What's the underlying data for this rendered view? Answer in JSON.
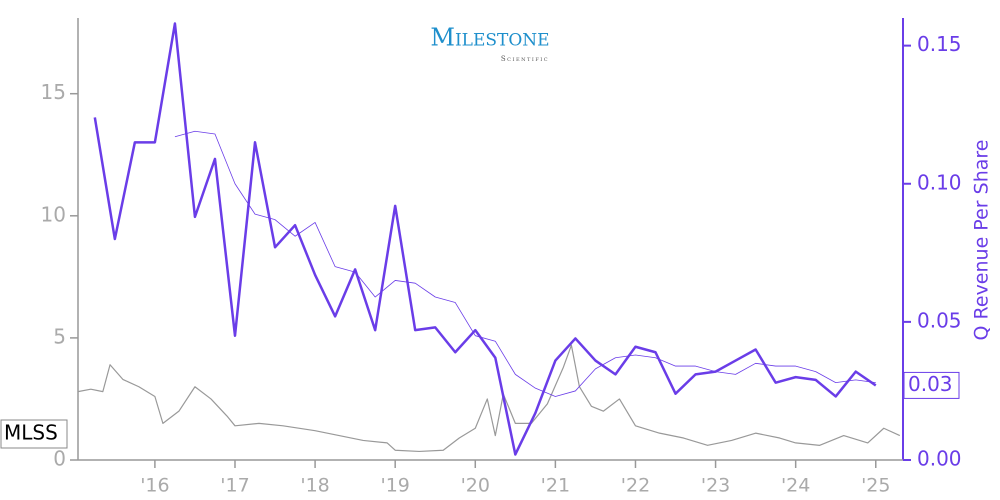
{
  "chart_data": {
    "type": "line",
    "logo": {
      "name": "Milestone",
      "sub": "Scientific",
      "color": "#1e8fcc"
    },
    "y2label": "Q Revenue Per Share",
    "xlim": [
      2015.04,
      2025.34
    ],
    "xticks": [
      {
        "value": 2016,
        "label": "'16"
      },
      {
        "value": 2017,
        "label": "'17"
      },
      {
        "value": 2018,
        "label": "'18"
      },
      {
        "value": 2019,
        "label": "'19"
      },
      {
        "value": 2020,
        "label": "'20"
      },
      {
        "value": 2021,
        "label": "'21"
      },
      {
        "value": 2022,
        "label": "'22"
      },
      {
        "value": 2023,
        "label": "'23"
      },
      {
        "value": 2024,
        "label": "'24"
      },
      {
        "value": 2025,
        "label": "'25"
      }
    ],
    "ylim": [
      0,
      18.1
    ],
    "yticks": [
      0,
      5,
      10,
      15
    ],
    "y2lim": [
      0,
      0.16
    ],
    "y2ticks": [
      {
        "value": 0,
        "label": "0.00"
      },
      {
        "value": 0.05,
        "label": "0.05"
      },
      {
        "value": 0.1,
        "label": "0.10"
      },
      {
        "value": 0.15,
        "label": "0.15"
      }
    ],
    "series": [
      {
        "name": "MLSS",
        "color": "#999999",
        "x": [
          2015.04,
          2015.2,
          2015.35,
          2015.44,
          2015.6,
          2015.8,
          2016.0,
          2016.1,
          2016.3,
          2016.5,
          2016.7,
          2016.9,
          2017.0,
          2017.3,
          2017.6,
          2018.0,
          2018.3,
          2018.6,
          2018.9,
          2019.0,
          2019.3,
          2019.6,
          2019.8,
          2020.0,
          2020.15,
          2020.25,
          2020.35,
          2020.5,
          2020.7,
          2020.9,
          2021.1,
          2021.2,
          2021.3,
          2021.45,
          2021.6,
          2021.8,
          2022.0,
          2022.3,
          2022.6,
          2022.9,
          2023.2,
          2023.5,
          2023.8,
          2024.0,
          2024.3,
          2024.6,
          2024.9,
          2025.1,
          2025.3
        ],
        "values": [
          2.8,
          2.9,
          2.8,
          3.9,
          3.3,
          3.0,
          2.6,
          1.5,
          2.0,
          3.0,
          2.5,
          1.8,
          1.4,
          1.5,
          1.4,
          1.2,
          1.0,
          0.8,
          0.7,
          0.4,
          0.35,
          0.4,
          0.9,
          1.3,
          2.5,
          1.0,
          2.7,
          1.5,
          1.5,
          2.3,
          3.8,
          4.7,
          3.0,
          2.2,
          2.0,
          2.5,
          1.4,
          1.1,
          0.9,
          0.6,
          0.8,
          1.1,
          0.9,
          0.7,
          0.6,
          1.0,
          0.7,
          1.3,
          1.0
        ]
      },
      {
        "axis": "y2",
        "color": "#6a3de8",
        "width": 2.5,
        "last_label": "0.03",
        "x": [
          2015.25,
          2015.5,
          2015.75,
          2016.0,
          2016.25,
          2016.5,
          2016.75,
          2017.0,
          2017.25,
          2017.5,
          2017.75,
          2018.0,
          2018.25,
          2018.5,
          2018.75,
          2019.0,
          2019.25,
          2019.5,
          2019.75,
          2020.0,
          2020.25,
          2020.5,
          2020.75,
          2021.0,
          2021.25,
          2021.5,
          2021.75,
          2022.0,
          2022.25,
          2022.5,
          2022.75,
          2023.0,
          2023.25,
          2023.5,
          2023.75,
          2024.0,
          2024.25,
          2024.5,
          2024.75,
          2025.0
        ],
        "values": [
          0.124,
          0.08,
          0.115,
          0.115,
          0.158,
          0.088,
          0.109,
          0.045,
          0.115,
          0.077,
          0.085,
          0.067,
          0.052,
          0.069,
          0.047,
          0.092,
          0.047,
          0.048,
          0.039,
          0.047,
          0.037,
          0.002,
          0.017,
          0.036,
          0.044,
          0.036,
          0.031,
          0.041,
          0.039,
          0.024,
          0.031,
          0.032,
          0.036,
          0.04,
          0.028,
          0.03,
          0.029,
          0.023,
          0.032,
          0.027
        ]
      },
      {
        "axis": "y2",
        "color": "#6a3de8",
        "width": 0.8,
        "x": [
          2015.25,
          2015.5,
          2015.75,
          2016.0,
          2016.25,
          2016.5,
          2016.75,
          2017.0,
          2017.25,
          2017.5,
          2017.75,
          2018.0,
          2018.25,
          2018.5,
          2018.75,
          2019.0,
          2019.25,
          2019.5,
          2019.75,
          2020.0,
          2020.25,
          2020.5,
          2020.75,
          2021.0,
          2021.25,
          2021.5,
          2021.75,
          2022.0,
          2022.25,
          2022.5,
          2022.75,
          2023.0,
          2023.25,
          2023.5,
          2023.75,
          2024.0,
          2024.25,
          2024.5,
          2024.75,
          2025.0
        ],
        "values": [
          null,
          null,
          null,
          null,
          0.117,
          0.119,
          0.118,
          0.1,
          0.089,
          0.087,
          0.081,
          0.086,
          0.07,
          0.068,
          0.059,
          0.065,
          0.064,
          0.059,
          0.057,
          0.045,
          0.043,
          0.031,
          0.026,
          0.023,
          0.025,
          0.033,
          0.037,
          0.038,
          0.037,
          0.034,
          0.034,
          0.032,
          0.031,
          0.035,
          0.034,
          0.034,
          0.032,
          0.028,
          0.029,
          0.028
        ]
      }
    ]
  }
}
